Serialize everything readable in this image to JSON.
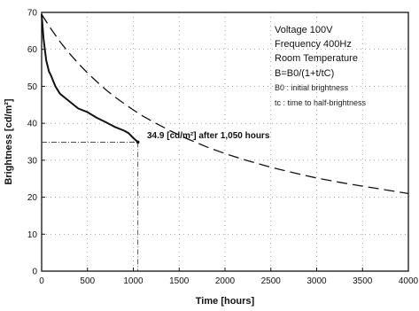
{
  "chart_data": {
    "type": "line",
    "xlabel": "Time [hours]",
    "ylabel": "Brightness [cd/m²]",
    "xlim": [
      0,
      4000
    ],
    "ylim": [
      0,
      70
    ],
    "xticks": [
      0,
      500,
      1000,
      1500,
      2000,
      2500,
      3000,
      3500,
      4000
    ],
    "yticks": [
      0,
      10,
      20,
      30,
      40,
      50,
      60,
      70
    ],
    "grid": true,
    "annotation_lines": [
      "Voltage 100V",
      "Frequency 400Hz",
      "Room Temperature",
      "B=B0/(1+t/tC)"
    ],
    "legend_lines": [
      "B0 : initial brightness",
      "tc : time to half-brightness"
    ],
    "callout": {
      "text": "34.9 [cd/m²] after 1,050 hours",
      "x": 1050,
      "y": 34.9
    },
    "series": [
      {
        "style": "solid",
        "x": [
          0,
          20,
          50,
          80,
          100,
          150,
          200,
          300,
          400,
          500,
          600,
          700,
          800,
          900,
          950,
          1000,
          1050
        ],
        "y": [
          69.5,
          63,
          57,
          54,
          53,
          50,
          48,
          46,
          44,
          43,
          41.5,
          40.3,
          39,
          38,
          37.3,
          36,
          34.9
        ]
      },
      {
        "style": "dashed",
        "x": [
          0,
          100,
          200,
          300,
          400,
          500,
          600,
          700,
          800,
          900,
          1000,
          1100,
          1200,
          1400,
          1600,
          1800,
          2000,
          2200,
          2500,
          2800,
          3000,
          3300,
          3500,
          3800,
          4000
        ],
        "y": [
          69.5,
          65.6,
          62.1,
          59.0,
          56.2,
          53.6,
          51.3,
          49.1,
          47.1,
          45.3,
          43.6,
          42.0,
          40.6,
          38.0,
          35.7,
          33.6,
          31.8,
          30.2,
          28.1,
          26.3,
          25.2,
          23.8,
          23.0,
          21.8,
          21.0
        ]
      }
    ]
  }
}
